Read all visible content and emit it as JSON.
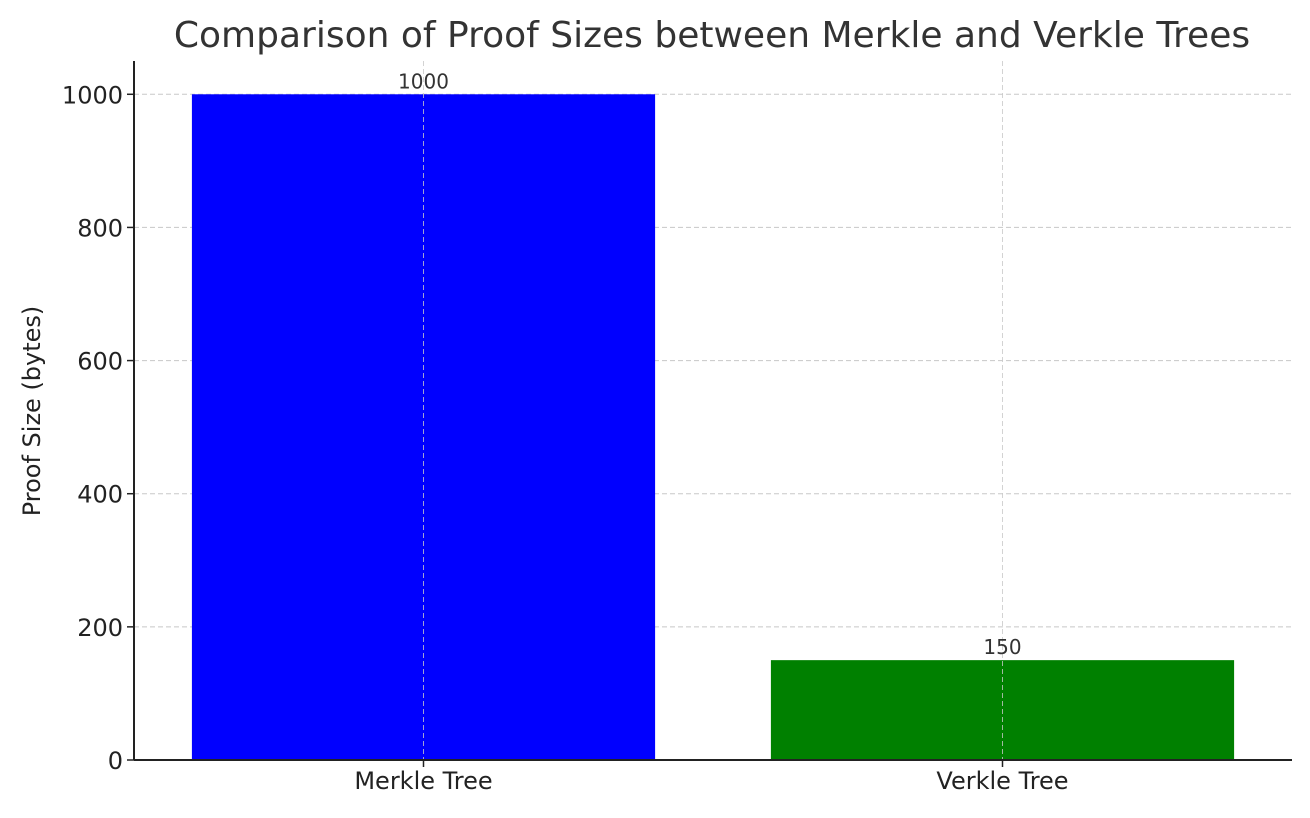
{
  "chart_data": {
    "type": "bar",
    "title": "Comparison of Proof Sizes between Merkle and Verkle Trees",
    "xlabel": "",
    "ylabel": "Proof Size (bytes)",
    "categories": [
      "Merkle Tree",
      "Verkle Tree"
    ],
    "values": [
      1000,
      150
    ],
    "data_labels": [
      "1000",
      "150"
    ],
    "colors": [
      "#0000ff",
      "#008000"
    ],
    "ylim": [
      0,
      1050
    ],
    "yticks": [
      0,
      200,
      400,
      600,
      800,
      1000
    ],
    "grid": true,
    "legend": "none"
  }
}
